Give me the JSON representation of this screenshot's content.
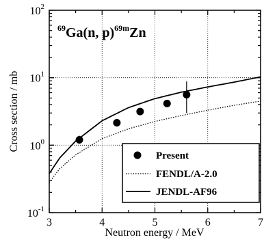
{
  "chart_data": {
    "type": "scatter",
    "annotation": {
      "mass_in": "69",
      "reaction": "Ga(n, p)",
      "mass_out": "69m",
      "product": "Zn"
    },
    "xlabel": "Neutron energy / MeV",
    "ylabel": "Cross section / mb",
    "xlim": [
      3,
      7
    ],
    "ylim": [
      0.1,
      100
    ],
    "yscale": "log",
    "x_ticks": [
      "3",
      "4",
      "5",
      "6",
      "7"
    ],
    "y_ticks": [
      {
        "value": 0.1,
        "base": "10",
        "exp": "-1"
      },
      {
        "value": 1,
        "base": "10",
        "exp": "0"
      },
      {
        "value": 10,
        "base": "10",
        "exp": "1"
      },
      {
        "value": 100,
        "base": "10",
        "exp": "2"
      }
    ],
    "grid": "dotted at x = 4, 5, 6 and y = 1, 10",
    "legend_position": "bottom-right",
    "series": [
      {
        "name": "Present",
        "style": "markers",
        "x": [
          3.57,
          4.28,
          4.72,
          5.23,
          5.6
        ],
        "y": [
          1.2,
          2.15,
          3.15,
          4.15,
          5.6
        ],
        "y_err_low": [
          1.05,
          1.9,
          2.8,
          3.7,
          3.0
        ],
        "y_err_high": [
          1.38,
          2.45,
          3.5,
          4.65,
          8.8
        ]
      },
      {
        "name": "FENDL/A-2.0",
        "style": "dotted-line",
        "x": [
          3.0,
          3.2,
          3.5,
          4.0,
          4.5,
          5.0,
          5.5,
          6.0,
          6.5,
          7.0
        ],
        "y": [
          0.28,
          0.45,
          0.72,
          1.25,
          1.75,
          2.25,
          2.75,
          3.3,
          3.9,
          4.5
        ]
      },
      {
        "name": "JENDL-AF96",
        "style": "solid-line",
        "x": [
          3.0,
          3.2,
          3.5,
          4.0,
          4.5,
          5.0,
          5.5,
          6.0,
          6.5,
          7.0
        ],
        "y": [
          0.38,
          0.65,
          1.15,
          2.3,
          3.6,
          4.9,
          6.1,
          7.3,
          8.6,
          10.3
        ]
      }
    ]
  }
}
